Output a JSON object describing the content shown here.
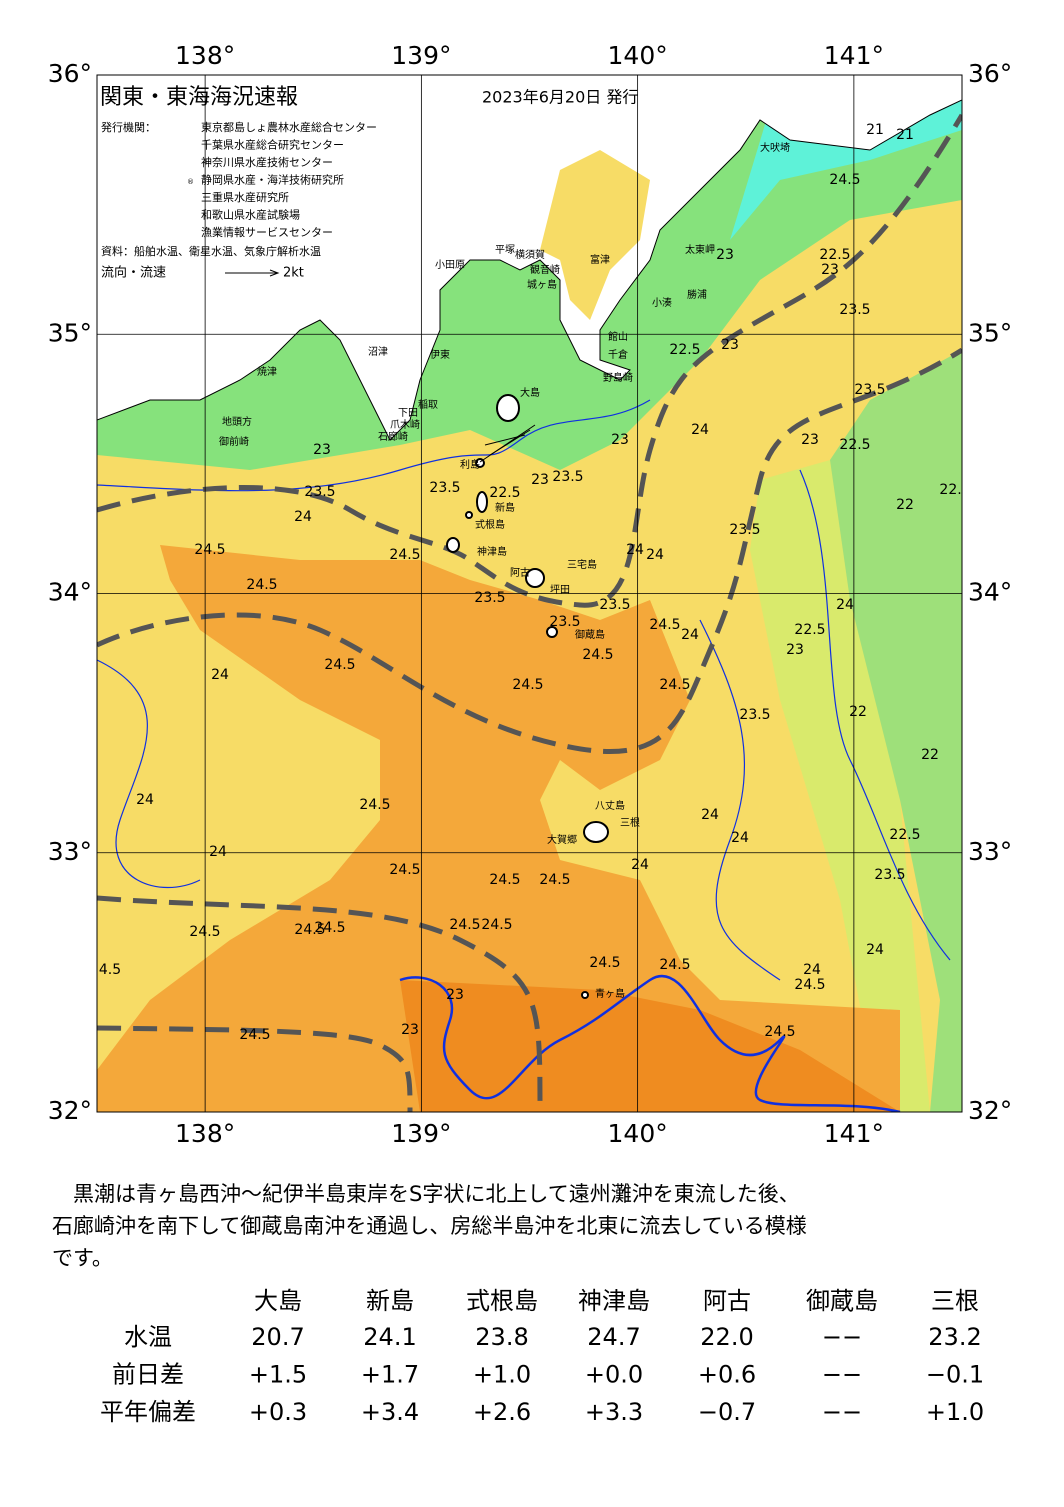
{
  "map": {
    "title": "関東・東海海況速報",
    "date": "2023年6月20日 発行",
    "issuer_label": "発行機関：",
    "issuers": [
      "東京都島しょ農林水産総合センター",
      "千葉県水産総合研究センター",
      "神奈川県水産技術センター",
      "静岡県水産・海洋技術研究所",
      "三重県水産研究所",
      "和歌山県水産試験場",
      "漁業情報サービスセンター"
    ],
    "issuer_mark": "®",
    "source": "資料：船舶水温、衛星水温、気象庁解析水温",
    "legend_label": "流向・流速",
    "legend_speed": "2kt",
    "lonlim": [
      137.5,
      141.5
    ],
    "latlim": [
      32,
      36
    ],
    "xticks": [
      {
        "value": 138,
        "label": "138°"
      },
      {
        "value": 139,
        "label": "139°"
      },
      {
        "value": 140,
        "label": "140°"
      },
      {
        "value": 141,
        "label": "141°"
      }
    ],
    "yticks": [
      {
        "value": 36,
        "label": "36°"
      },
      {
        "value": 35,
        "label": "35°"
      },
      {
        "value": 34,
        "label": "34°"
      },
      {
        "value": 33,
        "label": "33°"
      },
      {
        "value": 32,
        "label": "32°"
      }
    ],
    "places": [
      "大吠埼",
      "太東岬",
      "勝浦",
      "小湊",
      "館山",
      "千倉",
      "野島崎",
      "富津",
      "観音崎",
      "横須賀",
      "城ヶ島",
      "平塚",
      "小田原",
      "沼津",
      "伊東",
      "稲取",
      "下田",
      "爪木崎",
      "石廊崎",
      "焼津",
      "地頭方",
      "御前崎",
      "大島",
      "利島",
      "新島",
      "式根島",
      "神津島",
      "三宅島",
      "阿古",
      "坪田",
      "御蔵島",
      "八丈島",
      "三根",
      "大賀郷",
      "青ヶ島"
    ],
    "contours": [
      23,
      23.5,
      24,
      24.5,
      24.5,
      24.5,
      23.5,
      22.5,
      23.5,
      23,
      23.5,
      23.5,
      23.5,
      24.5,
      24.5,
      24,
      24,
      24,
      24.5,
      23,
      24,
      23.5,
      24.5,
      22.5,
      23.5,
      21,
      21,
      23,
      23,
      22.5,
      22,
      22.5,
      22.5,
      24,
      23,
      23.5,
      22,
      22,
      24.5,
      24.5,
      24,
      24,
      24.5,
      24,
      24.5,
      24.5,
      24.5,
      24.5,
      24.5,
      24.5,
      24.5,
      24.5,
      24.5,
      24.5,
      4.5,
      24.5,
      24,
      24,
      24.5,
      23,
      23,
      24.5,
      24,
      24,
      24,
      22.5,
      23.5,
      23,
      23,
      22.5,
      23.5
    ]
  },
  "summary": {
    "lines": [
      "　黒潮は青ヶ島西沖～紀伊半島東岸をS字状に北上して遠州灘沖を東流した後、",
      "石廊崎沖を南下して御蔵島南沖を通過し、房総半島沖を北東に流去している模様",
      "です。"
    ]
  },
  "table": {
    "header": [
      "大島",
      "新島",
      "式根島",
      "神津島",
      "阿古",
      "御蔵島",
      "三根"
    ],
    "rows": [
      [
        "水温",
        "20.7",
        "24.1",
        "23.8",
        "24.7",
        "22.0",
        "−−",
        "23.2"
      ],
      [
        "前日差",
        "+1.5",
        "+1.7",
        "+1.0",
        "+0.0",
        "+0.6",
        "−−",
        "−0.1"
      ],
      [
        "平年偏差",
        "+0.3",
        "+3.4",
        "+2.6",
        "+3.3",
        "−0.7",
        "−−",
        "+1.0"
      ]
    ]
  }
}
